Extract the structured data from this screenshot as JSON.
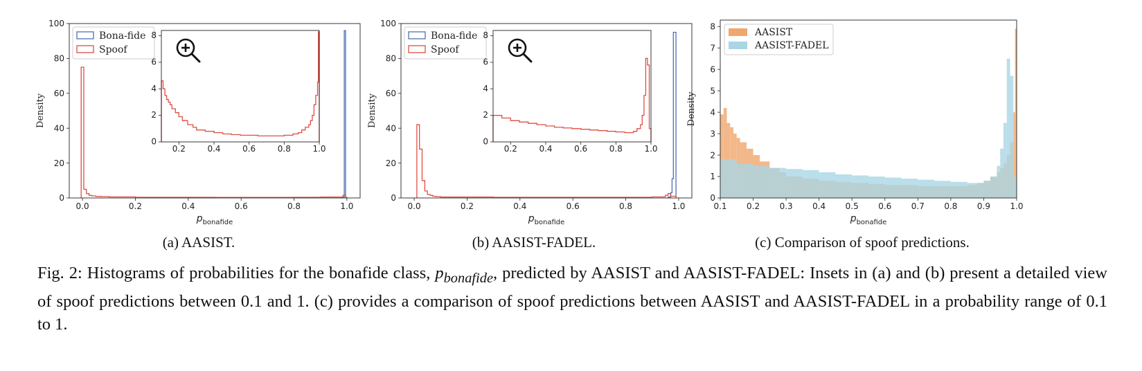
{
  "figure": {
    "caption": {
      "prefix": "Fig. 2: Histograms of probabilities for the bonafide class, ",
      "variable": "p",
      "variable_sub": "bonafide",
      "suffix": ", predicted by AASIST and AASIST-FADEL: Insets in (a) and (b) present a detailed view of spoof predictions between 0.1 and 1. (c) provides a comparison of spoof predictions between AASIST and AASIST-FADEL in a probability range of 0.1 to 1."
    },
    "subcaptions": [
      "(a) AASIST.",
      "(b) AASIST-FADEL.",
      "(c) Comparison of spoof predictions."
    ],
    "zoom_icon": "zoom-in-icon"
  },
  "chart_data": [
    {
      "id": "a",
      "type": "histogram-step",
      "subcaption": "(a) AASIST.",
      "xlabel_main": "p",
      "xlabel_sub": "bonafide",
      "ylabel": "Density",
      "xlim": [
        -0.05,
        1.05
      ],
      "ylim": [
        0,
        100
      ],
      "xticks": [
        0.0,
        0.2,
        0.4,
        0.6,
        0.8,
        1.0
      ],
      "yticks": [
        0,
        20,
        40,
        60,
        80,
        100
      ],
      "legend_position": "top-left",
      "series": [
        {
          "name": "Bona-fide",
          "color": "#4c72b0",
          "bin_edges": [
            0.985,
            0.99,
            0.995
          ],
          "values": [
            0.5,
            96
          ]
        },
        {
          "name": "Spoof",
          "color": "#dd4f45",
          "bin_edges": [
            -0.005,
            0.005,
            0.015,
            0.025,
            0.035,
            0.05,
            0.07,
            0.1,
            0.2,
            0.5,
            0.8,
            0.9,
            0.985,
            0.995,
            1.0
          ],
          "values": [
            75,
            5,
            2.5,
            1.5,
            1.2,
            0.9,
            0.8,
            0.6,
            0.4,
            0.3,
            0.4,
            0.5,
            1.5,
            0.3
          ]
        }
      ],
      "inset": {
        "xlim": [
          0.1,
          1.0
        ],
        "ylim": [
          0,
          8.4
        ],
        "xticks": [
          0.2,
          0.4,
          0.6,
          0.8,
          1.0
        ],
        "yticks": [
          0,
          2,
          4,
          6,
          8
        ],
        "spoof_bin_edges": [
          0.1,
          0.11,
          0.12,
          0.13,
          0.14,
          0.15,
          0.16,
          0.18,
          0.2,
          0.22,
          0.25,
          0.28,
          0.3,
          0.35,
          0.4,
          0.45,
          0.5,
          0.55,
          0.6,
          0.65,
          0.7,
          0.75,
          0.8,
          0.85,
          0.88,
          0.9,
          0.92,
          0.94,
          0.95,
          0.96,
          0.97,
          0.98,
          0.99,
          0.995,
          1.0
        ],
        "spoof_values": [
          4.6,
          4.0,
          3.5,
          3.2,
          3.0,
          2.8,
          2.5,
          2.2,
          1.9,
          1.6,
          1.3,
          1.1,
          0.9,
          0.8,
          0.7,
          0.6,
          0.55,
          0.5,
          0.5,
          0.45,
          0.45,
          0.45,
          0.5,
          0.6,
          0.7,
          0.9,
          1.1,
          1.3,
          1.6,
          2.0,
          2.8,
          3.5,
          4.5,
          8.3
        ]
      }
    },
    {
      "id": "b",
      "type": "histogram-step",
      "subcaption": "(b) AASIST-FADEL.",
      "xlabel_main": "p",
      "xlabel_sub": "bonafide",
      "ylabel": "Density",
      "xlim": [
        -0.05,
        1.05
      ],
      "ylim": [
        0,
        100
      ],
      "xticks": [
        0.0,
        0.2,
        0.4,
        0.6,
        0.8,
        1.0
      ],
      "yticks": [
        0,
        20,
        40,
        60,
        80,
        100
      ],
      "legend_position": "top-left",
      "series": [
        {
          "name": "Bona-fide",
          "color": "#4c72b0",
          "bin_edges": [
            0.96,
            0.97,
            0.975,
            0.98,
            0.99
          ],
          "values": [
            0.5,
            3,
            11,
            95
          ]
        },
        {
          "name": "Spoof",
          "color": "#dd4f45",
          "bin_edges": [
            0.01,
            0.02,
            0.03,
            0.04,
            0.05,
            0.06,
            0.07,
            0.08,
            0.1,
            0.3,
            0.6,
            0.9,
            0.95,
            0.96,
            0.97,
            0.99
          ],
          "values": [
            42,
            28,
            10,
            4,
            2,
            1.5,
            1.0,
            0.8,
            0.5,
            0.4,
            0.4,
            0.6,
            1.5,
            2.5,
            1.0
          ]
        }
      ],
      "inset": {
        "xlim": [
          0.1,
          1.0
        ],
        "ylim": [
          0,
          8.4
        ],
        "xticks": [
          0.2,
          0.4,
          0.6,
          0.8,
          1.0
        ],
        "yticks": [
          0,
          2,
          4,
          6,
          8
        ],
        "spoof_bin_edges": [
          0.1,
          0.15,
          0.2,
          0.25,
          0.3,
          0.35,
          0.4,
          0.45,
          0.5,
          0.55,
          0.6,
          0.65,
          0.7,
          0.75,
          0.8,
          0.85,
          0.9,
          0.92,
          0.94,
          0.95,
          0.96,
          0.97,
          0.98,
          0.99,
          1.0
        ],
        "spoof_values": [
          2.0,
          1.8,
          1.6,
          1.5,
          1.4,
          1.3,
          1.2,
          1.1,
          1.05,
          1.0,
          0.95,
          0.9,
          0.85,
          0.8,
          0.75,
          0.7,
          0.8,
          1.0,
          1.3,
          2.0,
          3.5,
          6.3,
          5.8,
          1.0
        ]
      }
    },
    {
      "id": "c",
      "type": "histogram-overlay",
      "subcaption": "(c) Comparison of spoof predictions.",
      "xlabel_main": "p",
      "xlabel_sub": "bonafide",
      "ylabel": "Density",
      "xlim": [
        0.1,
        1.0
      ],
      "ylim": [
        0,
        8.3
      ],
      "xticks": [
        0.1,
        0.2,
        0.3,
        0.4,
        0.5,
        0.6,
        0.7,
        0.8,
        0.9,
        1.0
      ],
      "yticks": [
        0,
        1,
        2,
        3,
        4,
        5,
        6,
        7,
        8
      ],
      "legend_position": "top-left",
      "series": [
        {
          "name": "AASIST",
          "color": "#f0a66c",
          "bin_edges": [
            0.1,
            0.11,
            0.12,
            0.13,
            0.14,
            0.15,
            0.16,
            0.18,
            0.2,
            0.22,
            0.25,
            0.28,
            0.3,
            0.35,
            0.4,
            0.45,
            0.5,
            0.55,
            0.6,
            0.65,
            0.7,
            0.75,
            0.8,
            0.85,
            0.88,
            0.9,
            0.92,
            0.94,
            0.95,
            0.96,
            0.97,
            0.98,
            0.99,
            0.995,
            1.0
          ],
          "values": [
            3.9,
            4.2,
            3.5,
            3.3,
            3.0,
            2.8,
            2.6,
            2.3,
            2.0,
            1.7,
            1.4,
            1.2,
            1.0,
            0.9,
            0.8,
            0.75,
            0.7,
            0.65,
            0.6,
            0.6,
            0.55,
            0.55,
            0.55,
            0.6,
            0.7,
            0.8,
            1.0,
            1.2,
            1.4,
            1.6,
            2.0,
            2.6,
            4.0,
            7.9
          ]
        },
        {
          "name": "AASIST-FADEL",
          "color": "#a9d6e5",
          "bin_edges": [
            0.1,
            0.15,
            0.2,
            0.25,
            0.3,
            0.35,
            0.4,
            0.45,
            0.5,
            0.55,
            0.6,
            0.65,
            0.7,
            0.75,
            0.8,
            0.85,
            0.9,
            0.92,
            0.94,
            0.95,
            0.96,
            0.97,
            0.98,
            0.99,
            1.0
          ],
          "values": [
            1.8,
            1.6,
            1.5,
            1.4,
            1.35,
            1.3,
            1.2,
            1.1,
            1.05,
            1.0,
            0.95,
            0.9,
            0.85,
            0.8,
            0.75,
            0.7,
            0.8,
            1.0,
            1.5,
            2.3,
            3.5,
            6.5,
            5.7,
            1.0
          ]
        }
      ]
    }
  ]
}
